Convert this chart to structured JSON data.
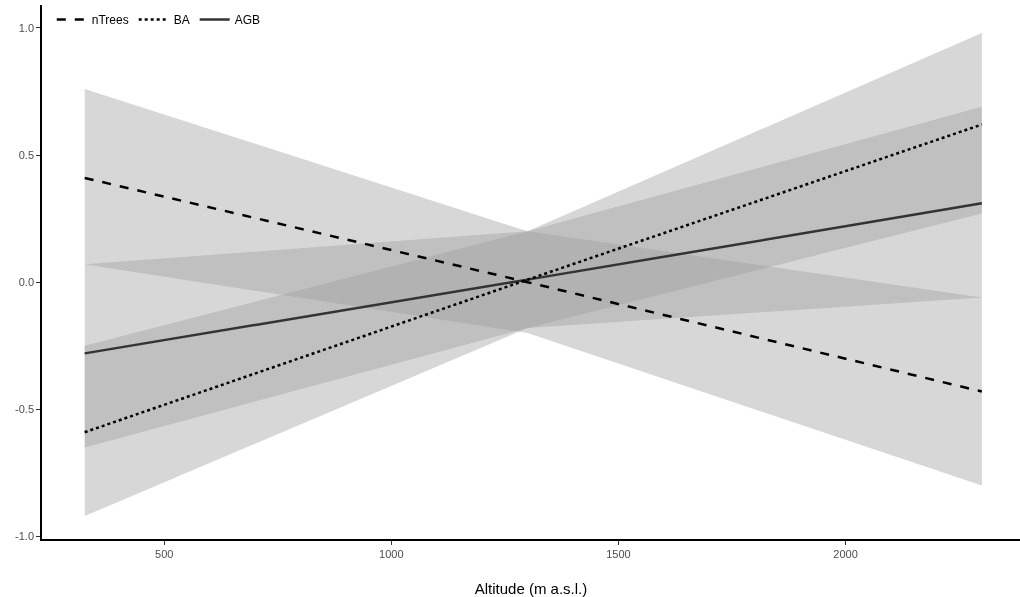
{
  "chart_data": {
    "type": "line",
    "xlabel": "Altitude (m a.s.l.)",
    "x": [
      325,
      1300,
      2300
    ],
    "series": [
      {
        "name": "AGB",
        "color": "#333333",
        "line_style": "solid",
        "values": [
          -0.28,
          0.01,
          0.31
        ],
        "lower": [
          -0.65,
          -0.18,
          -0.06
        ],
        "upper": [
          0.07,
          0.2,
          0.69
        ]
      },
      {
        "name": "BA",
        "color": "#000000",
        "line_style": "dotted",
        "values": [
          -0.59,
          0.01,
          0.62
        ],
        "lower": [
          -0.92,
          -0.18,
          0.27
        ],
        "upper": [
          -0.25,
          0.2,
          0.98
        ]
      },
      {
        "name": "nTrees",
        "color": "#000000",
        "line_style": "dashed",
        "values": [
          0.41,
          0.0,
          -0.43
        ],
        "lower": [
          0.07,
          -0.2,
          -0.8
        ],
        "upper": [
          0.76,
          0.2,
          -0.06
        ]
      }
    ],
    "xlim": [
      231,
      2384
    ],
    "xticks": [
      500,
      1000,
      1500,
      2000
    ],
    "ylim": [
      -1.01,
      1.09
    ],
    "yticks": [
      {
        "value": -1,
        "label": "-1.0"
      },
      {
        "value": -0.5,
        "label": "-0.5"
      },
      {
        "value": 0,
        "label": "0.0"
      },
      {
        "value": 0.5,
        "label": "0.5"
      },
      {
        "value": 1,
        "label": "1.0"
      }
    ],
    "grid": false,
    "legend": "top left",
    "marker": "none"
  }
}
